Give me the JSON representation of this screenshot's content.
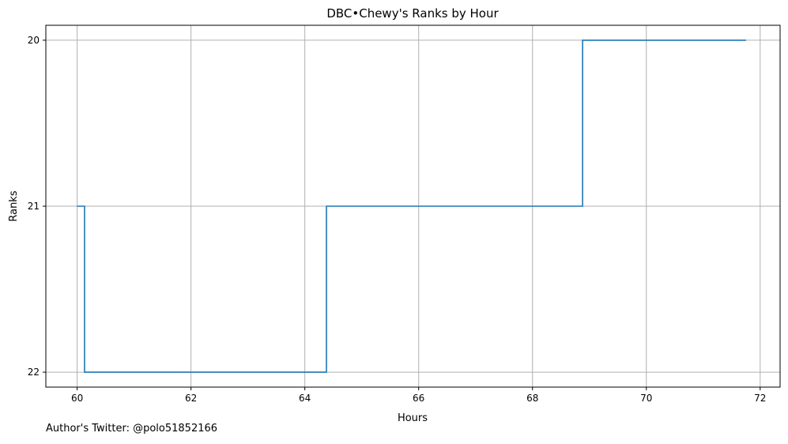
{
  "chart_data": {
    "type": "line",
    "step": true,
    "title": "DBC•Chewy's Ranks by Hour",
    "xlabel": "Hours",
    "ylabel": "Ranks",
    "xlim": [
      59.45,
      72.35
    ],
    "ylim": [
      22.09,
      19.91
    ],
    "y_inverted": true,
    "x_ticks": [
      60,
      62,
      64,
      66,
      68,
      70,
      72
    ],
    "x_tick_labels": [
      "60",
      "62",
      "64",
      "66",
      "68",
      "70",
      "72"
    ],
    "y_ticks": [
      20,
      21,
      22
    ],
    "y_tick_labels": [
      "20",
      "21",
      "22"
    ],
    "grid": true,
    "line_color": "#1f77b4",
    "series": [
      {
        "x": [
          60.0,
          60.13,
          60.13,
          64.38,
          64.38,
          68.88,
          68.88,
          71.75
        ],
        "y": [
          21,
          21,
          22,
          22,
          21,
          21,
          20,
          20
        ]
      }
    ]
  },
  "footer": {
    "credit": "Author's Twitter: @polo51852166"
  }
}
